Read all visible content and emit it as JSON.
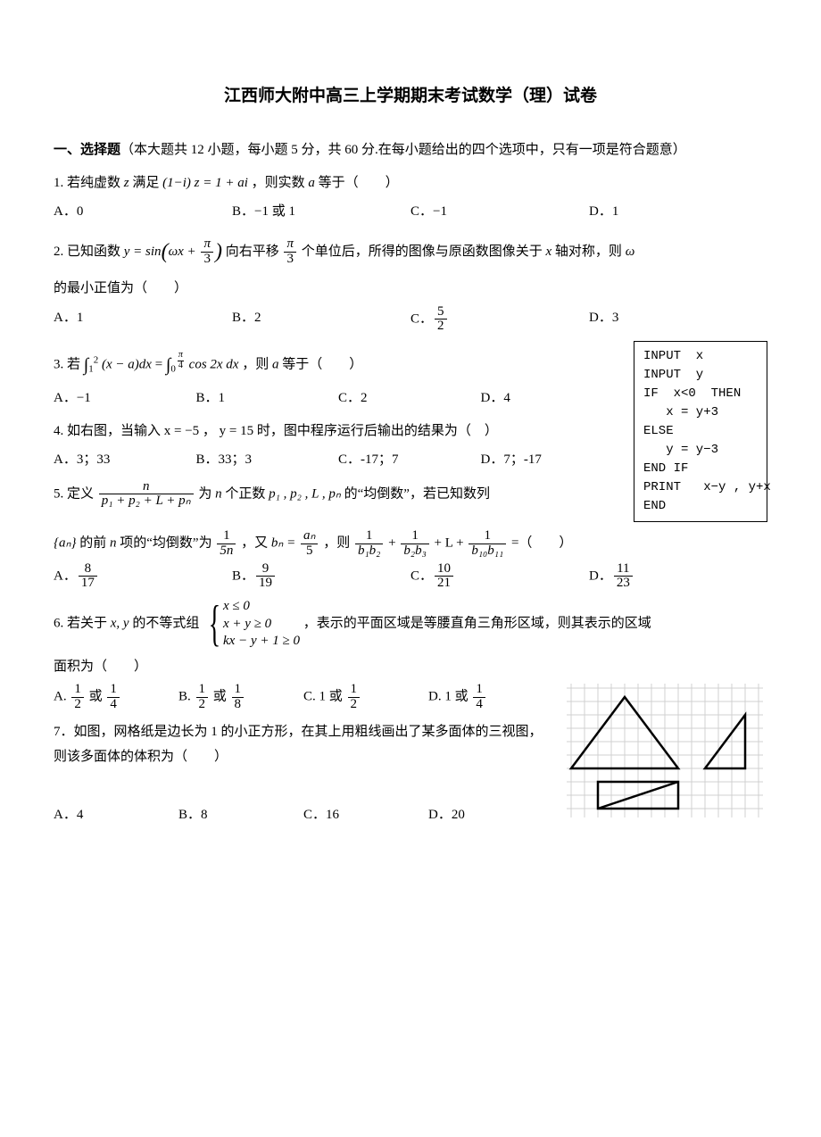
{
  "title": "江西师大附中高三上学期期末考试数学（理）试卷",
  "section1": {
    "head": "一、选择题",
    "desc": "（本大题共 12 小题，每小题 5 分，共 60 分.在每小题给出的四个选项中，只有一项是符合题意）"
  },
  "q1": {
    "stem_a": "1. 若纯虚数 ",
    "stem_b": " 满足 ",
    "stem_c": " ，则实数 ",
    "stem_d": " 等于（　　）",
    "z": "z",
    "eq": "(1−i) z = 1 + ai",
    "a": "a",
    "A": "A．0",
    "B": "B．−1 或 1",
    "C": "C．−1",
    "D": "D．1"
  },
  "q2": {
    "stem_a": "2. 已知函数 ",
    "stem_eq1": "y = sin",
    "stem_b": " 向右平移 ",
    "stem_c": " 个单位后，所得的图像与原函数图像关于 ",
    "x": "x",
    "stem_d": " 轴对称，则 ",
    "omega": "ω",
    "stem_e": "的最小正值为（　　）",
    "omegax": "ωx + ",
    "A": "A．1",
    "B": "B．2",
    "Cpre": "C．",
    "D": "D．3"
  },
  "q3": {
    "stem_a": "3. 若 ",
    "stem_b": " ，则 ",
    "a": "a",
    "stem_c": " 等于（　　）",
    "int1_f": "(x − a)dx",
    "int2_f": "cos 2x dx",
    "A": "A．−1",
    "B": "B．1",
    "C": "C．2",
    "D": "D．4"
  },
  "q4": {
    "stem": "4. 如右图，当输入 x = −5 ， y = 15 时，图中程序运行后输出的结果为（　）",
    "A": "A．3；33",
    "B": "B．33；3",
    "C": "C．-17；7",
    "D": "D．7；-17"
  },
  "code": "INPUT  x\nINPUT  y\nIF  x<0  THEN\n   x = y+3\nELSE\n   y = y−3\nEND IF\nPRINT   x−y , y+x\nEND",
  "q5": {
    "stem_a": "5. 定义 ",
    "stem_b": " 为 ",
    "n": "n",
    "stem_c": " 个正数 ",
    "plist": "p₁ , p₂ , L , pₙ",
    "stem_d": " 的“均倒数”，若已知数列",
    "numer": "n",
    "denom": "p₁ + p₂ + L + pₙ",
    "line2_a": " 的前 ",
    "line2_b": " 项的“均倒数”为 ",
    "line2_c": " ，又 ",
    "bn_eq": "bₙ = ",
    "line2_d": " ，则 ",
    "line2_e": "（　　）",
    "an": "{aₙ}",
    "an_num": "aₙ",
    "sum_tail": " + L + ",
    "eqend": " =",
    "Apre": "A．",
    "Bpre": "B．",
    "Cpre": "C．",
    "Dpre": "D．"
  },
  "q6": {
    "stem_a": "6. 若关于 ",
    "xy": "x, y",
    "stem_b": " 的不等式组 ",
    "l1": "x ≤ 0",
    "l2": "x + y ≥ 0",
    "l3": "kx − y + 1 ≥ 0",
    "stem_c": " ，表示的平面区域是等腰直角三角形区域，则其表示的区域",
    "stem_d": "面积为（　　）",
    "Apre": "A. ",
    "Bpre": "B. ",
    "Cpre": "C. 1 或 ",
    "Dpre": "D. 1 或 ",
    "or": " 或 "
  },
  "q7": {
    "stem": "7．如图，网格纸是边长为 1 的小正方形，在其上用粗线画出了某多面体的三视图，则该多面体的体积为（　　）",
    "A": "A．4",
    "B": "B．8",
    "C": "C．16",
    "D": "D．20"
  },
  "fig": {
    "grid_color": "#d0d0d0",
    "line_color": "#000000",
    "bg": "#ffffff"
  }
}
